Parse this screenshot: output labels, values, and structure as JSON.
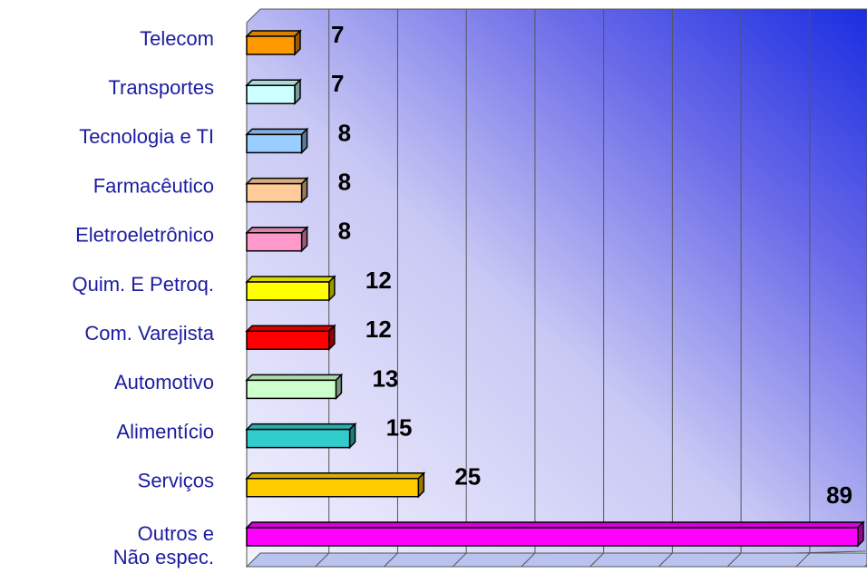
{
  "chart_data": {
    "type": "bar",
    "orientation": "horizontal",
    "categories": [
      "Telecom",
      "Transportes",
      "Tecnologia e TI",
      "Farmacêutico",
      "Eletroeletrônico",
      "Quim. E Petroq.",
      "Com. Varejista",
      "Automotivo",
      "Alimentício",
      "Serviços",
      "Outros e\nNão espec."
    ],
    "values": [
      7,
      7,
      8,
      8,
      8,
      12,
      12,
      13,
      15,
      25,
      89
    ],
    "colors": [
      "#ff9900",
      "#ccffff",
      "#99ccff",
      "#ffcc99",
      "#ff99cc",
      "#ffff00",
      "#ff0000",
      "#ccffcc",
      "#33cccc",
      "#ffcc00",
      "#ff00ff"
    ],
    "xlim": [
      0,
      90
    ],
    "xticks": [
      0,
      10,
      20,
      30,
      40,
      50,
      60,
      70,
      80,
      90
    ],
    "grid": true
  }
}
